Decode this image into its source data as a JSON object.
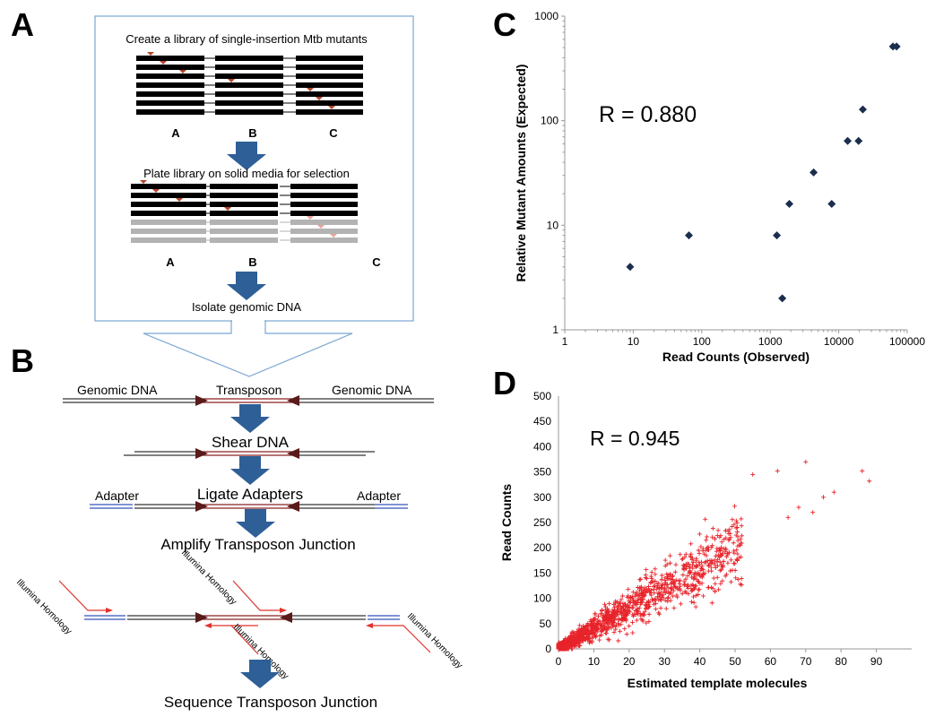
{
  "panels": {
    "a": "A",
    "b": "B",
    "c": "C",
    "d": "D"
  },
  "panel_a": {
    "step1": "Create a library of single-insertion Mtb mutants",
    "step2": "Plate library on solid media for selection",
    "step3": "Isolate genomic DNA",
    "gene_labels": [
      "A",
      "B",
      "C"
    ]
  },
  "panel_b": {
    "genomic_left": "Genomic DNA",
    "transposon": "Transposon",
    "genomic_right": "Genomic DNA",
    "shear": "Shear DNA",
    "ligate": "Ligate Adapters",
    "adapter_left": "Adapter",
    "adapter_right": "Adapter",
    "amplify": "Amplify Transposon Junction",
    "illumina": "Illumina Homology",
    "sequence": "Sequence Transposon Junction"
  },
  "colors": {
    "arrow": "#2e5f96",
    "marker": "#b5462a",
    "primer": "#e0332b",
    "scatter_c": "#1b2e4e",
    "scatter_d": "#e8232a",
    "transposon_arrow": "#5a1a1a",
    "adapter": "#3355bb"
  },
  "chart_data": [
    {
      "type": "scatter",
      "panel": "C",
      "annotation": "R = 0.880",
      "xlabel": "Read Counts (Observed)",
      "ylabel": "Relative Mutant Amounts (Expected)",
      "xscale": "log",
      "yscale": "log",
      "xlim": [
        1,
        100000
      ],
      "ylim": [
        1,
        1000
      ],
      "xticks": [
        "1",
        "10",
        "100",
        "1000",
        "10000",
        "100000"
      ],
      "yticks": [
        "1",
        "10",
        "100",
        "1000"
      ],
      "points": [
        [
          9,
          4
        ],
        [
          65,
          8
        ],
        [
          1250,
          8
        ],
        [
          1500,
          2
        ],
        [
          1900,
          16
        ],
        [
          4300,
          32
        ],
        [
          7900,
          16
        ],
        [
          13500,
          64
        ],
        [
          19500,
          64
        ],
        [
          22500,
          128
        ],
        [
          62000,
          512
        ],
        [
          70000,
          512
        ]
      ]
    },
    {
      "type": "scatter",
      "panel": "D",
      "annotation": "R = 0.945",
      "xlabel": "Estimated template molecules",
      "ylabel": "Read Counts",
      "xlim": [
        0,
        100
      ],
      "ylim": [
        0,
        500
      ],
      "xticks": [
        "0",
        "10",
        "20",
        "30",
        "40",
        "50",
        "60",
        "70",
        "80",
        "90"
      ],
      "yticks": [
        "0",
        "50",
        "100",
        "150",
        "200",
        "250",
        "300",
        "350",
        "400",
        "450",
        "500"
      ],
      "approx_slope": 4.0,
      "highlight_points": [
        [
          55,
          345
        ],
        [
          62,
          352
        ],
        [
          70,
          370
        ],
        [
          75,
          300
        ],
        [
          78,
          310
        ],
        [
          86,
          352
        ],
        [
          88,
          332
        ],
        [
          68,
          280
        ],
        [
          72,
          270
        ],
        [
          65,
          260
        ]
      ]
    }
  ]
}
